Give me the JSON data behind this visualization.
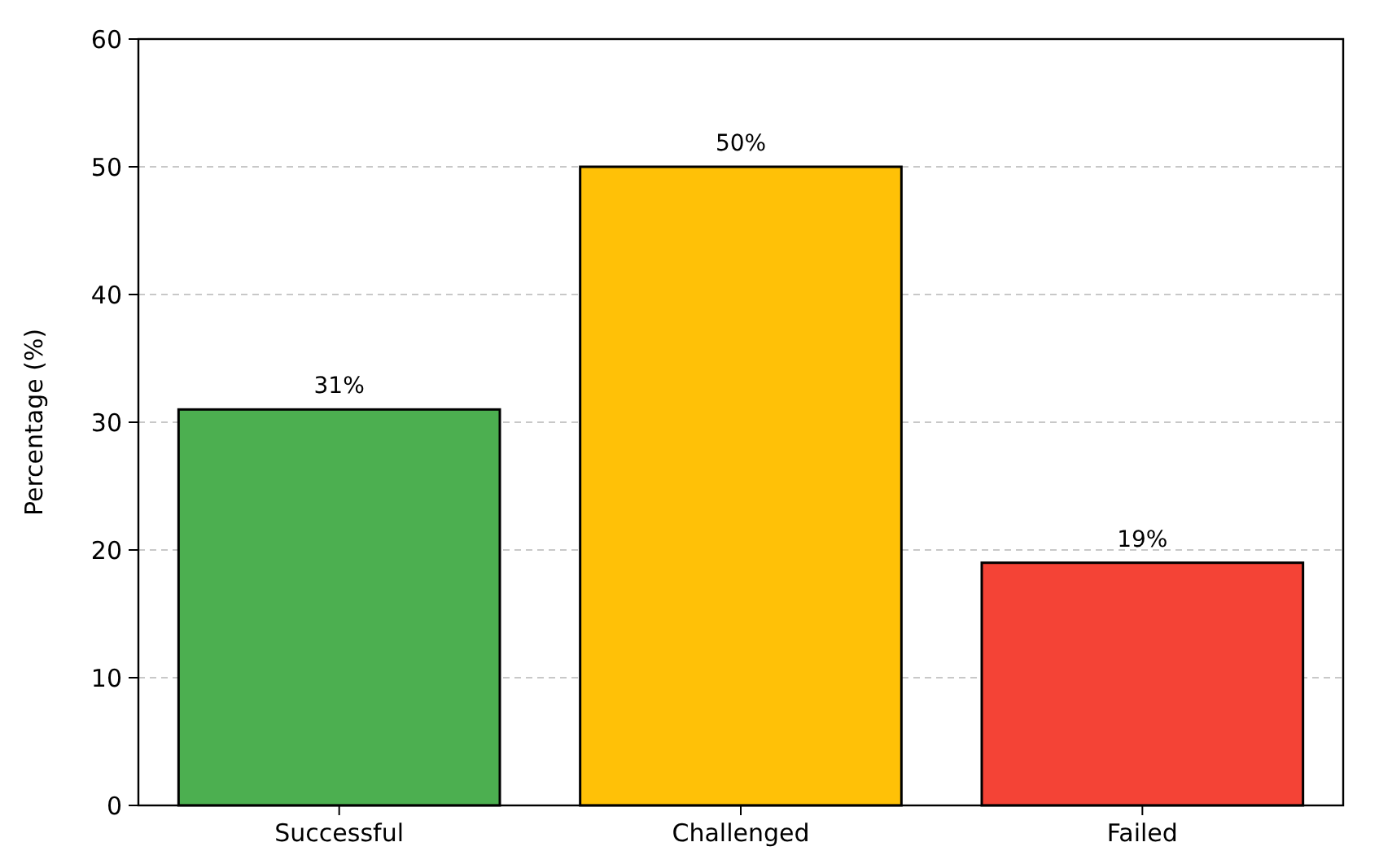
{
  "chart_data": {
    "type": "bar",
    "ylabel": "Percentage (%)",
    "categories": [
      "Successful",
      "Challenged",
      "Failed"
    ],
    "values": [
      31,
      50,
      19
    ],
    "colors": [
      "#4caf50",
      "#ffc107",
      "#f44336"
    ],
    "value_labels": [
      "31%",
      "50%",
      "19%"
    ],
    "ylim": [
      0,
      60
    ],
    "yticks": [
      0,
      10,
      20,
      30,
      40,
      50,
      60
    ],
    "grid": "y"
  }
}
